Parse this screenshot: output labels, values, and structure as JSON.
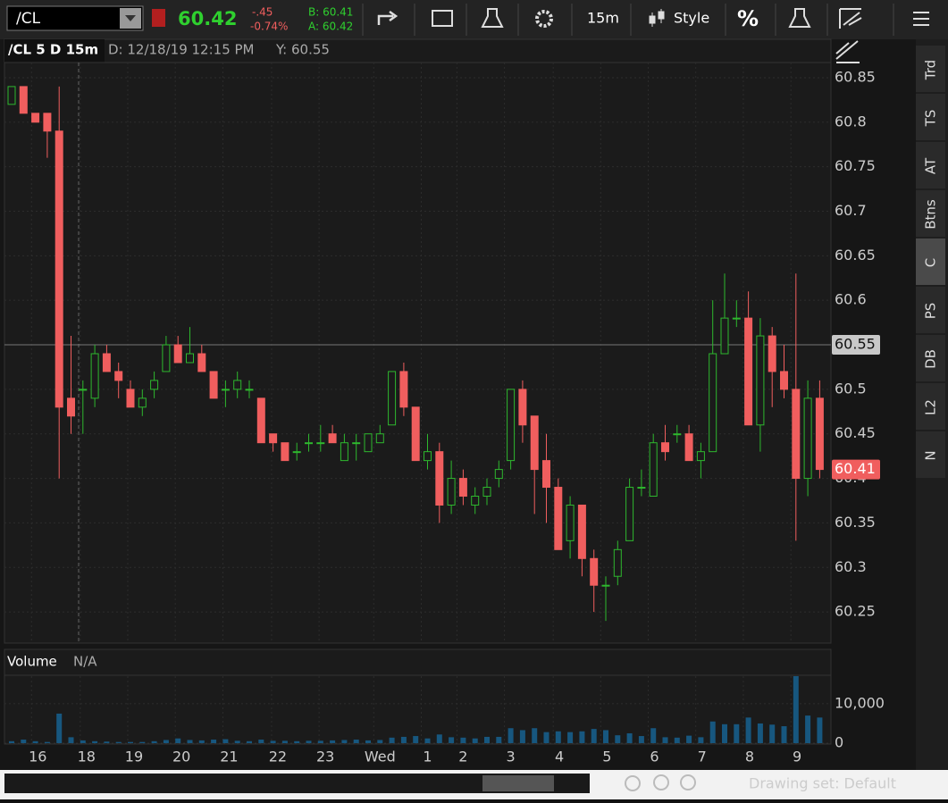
{
  "toolbar": {
    "symbol": "/CL",
    "last": "60.42",
    "change": "-.45",
    "change_pct": "-0.74%",
    "bid": "B: 60.41",
    "ask": "A: 60.42",
    "interval": "15m",
    "style": "Style",
    "percent": "%"
  },
  "chart_data": {
    "type": "candlestick",
    "title": "/CL 5 D 15m",
    "date_label": "D: 12/18/19 12:15 PM",
    "y_label": "Y: 60.55",
    "up_color": "#2eb82e",
    "down_color": "#f05e5e",
    "open": [
      60.82,
      60.84,
      60.81,
      60.81,
      60.79,
      60.49,
      60.5,
      60.49,
      60.54,
      60.52,
      60.5,
      60.48,
      60.5,
      60.52,
      60.55,
      60.53,
      60.54,
      60.52,
      60.5,
      60.5,
      60.5,
      60.49,
      60.45,
      60.44,
      60.43,
      60.44,
      60.44,
      60.45,
      60.42,
      60.44,
      60.43,
      60.44,
      60.46,
      60.52,
      60.48,
      60.42,
      60.43,
      60.37,
      60.4,
      60.37,
      60.38,
      60.4,
      60.42,
      60.5,
      60.47,
      60.42,
      60.39,
      60.33,
      60.37,
      60.31,
      60.28,
      60.29,
      60.33,
      60.39,
      60.38,
      60.44,
      60.45,
      60.45,
      60.42,
      60.43,
      60.54,
      60.58,
      60.58,
      60.46,
      60.56,
      60.52,
      60.5,
      60.4,
      60.49
    ],
    "high": [
      60.84,
      60.84,
      60.81,
      60.81,
      60.84,
      60.56,
      60.51,
      60.55,
      60.55,
      60.53,
      60.51,
      60.5,
      60.52,
      60.56,
      60.56,
      60.57,
      60.55,
      60.52,
      60.51,
      60.52,
      60.51,
      60.49,
      60.45,
      60.44,
      60.44,
      60.45,
      60.46,
      60.46,
      60.45,
      60.45,
      60.45,
      60.46,
      60.52,
      60.53,
      60.48,
      60.45,
      60.44,
      60.42,
      60.41,
      60.39,
      60.4,
      60.42,
      60.5,
      60.51,
      60.47,
      60.45,
      60.4,
      60.38,
      60.37,
      60.32,
      60.29,
      60.33,
      60.4,
      60.41,
      60.45,
      60.46,
      60.46,
      60.46,
      60.44,
      60.6,
      60.63,
      60.6,
      60.61,
      60.58,
      60.57,
      60.55,
      60.63,
      60.51,
      60.51
    ],
    "low": [
      60.82,
      60.81,
      60.8,
      60.76,
      60.4,
      60.45,
      60.45,
      60.48,
      60.52,
      60.49,
      60.48,
      60.47,
      60.49,
      60.52,
      60.53,
      60.53,
      60.52,
      60.49,
      60.48,
      60.49,
      60.49,
      60.44,
      60.43,
      60.42,
      60.42,
      60.43,
      60.43,
      60.44,
      60.42,
      60.42,
      60.43,
      60.44,
      60.46,
      60.47,
      60.42,
      60.41,
      60.35,
      60.36,
      60.37,
      60.36,
      60.37,
      60.39,
      60.41,
      60.44,
      60.36,
      60.35,
      60.32,
      60.31,
      60.29,
      60.25,
      60.24,
      60.28,
      60.33,
      60.38,
      60.38,
      60.42,
      60.44,
      60.42,
      60.4,
      60.43,
      60.54,
      60.57,
      60.46,
      60.43,
      60.48,
      60.49,
      60.33,
      60.38,
      60.4
    ],
    "close": [
      60.84,
      60.81,
      60.8,
      60.79,
      60.48,
      60.47,
      60.5,
      60.54,
      60.52,
      60.51,
      60.48,
      60.49,
      60.51,
      60.55,
      60.53,
      60.54,
      60.52,
      60.49,
      60.5,
      60.51,
      60.5,
      60.44,
      60.44,
      60.42,
      60.43,
      60.44,
      60.44,
      60.44,
      60.44,
      60.44,
      60.45,
      60.45,
      60.52,
      60.48,
      60.42,
      60.43,
      60.37,
      60.4,
      60.38,
      60.38,
      60.39,
      60.41,
      60.5,
      60.46,
      60.41,
      60.39,
      60.32,
      60.37,
      60.31,
      60.28,
      60.28,
      60.32,
      60.39,
      60.39,
      60.44,
      60.43,
      60.45,
      60.42,
      60.43,
      60.54,
      60.58,
      60.58,
      60.46,
      60.56,
      60.52,
      60.5,
      60.4,
      60.49,
      60.41
    ],
    "ylim": [
      60.215,
      60.867
    ],
    "yticks": [
      60.25,
      60.3,
      60.35,
      60.4,
      60.45,
      60.5,
      60.55,
      60.6,
      60.65,
      60.7,
      60.75,
      60.8,
      60.85
    ],
    "crosshair_y": 60.55,
    "last_price": 60.41,
    "xticks": [
      {
        "value": 2.2,
        "label": "16"
      },
      {
        "value": 6.3,
        "label": "18"
      },
      {
        "value": 10.3,
        "label": "19"
      },
      {
        "value": 14.3,
        "label": "20"
      },
      {
        "value": 18.3,
        "label": "21"
      },
      {
        "value": 22.4,
        "label": "22"
      },
      {
        "value": 26.4,
        "label": "23"
      },
      {
        "value": 31,
        "label": "Wed"
      },
      {
        "value": 35,
        "label": "1"
      },
      {
        "value": 38,
        "label": "2"
      },
      {
        "value": 42,
        "label": "3"
      },
      {
        "value": 46.1,
        "label": "4"
      },
      {
        "value": 50.1,
        "label": "5"
      },
      {
        "value": 54.1,
        "label": "6"
      },
      {
        "value": 58.1,
        "label": "7"
      },
      {
        "value": 62.1,
        "label": "8"
      },
      {
        "value": 66.1,
        "label": "9"
      }
    ],
    "volume": {
      "title": "Volume",
      "subtitle": "N/A",
      "color": "#17577f",
      "values": [
        500,
        900,
        500,
        300,
        7500,
        1500,
        700,
        500,
        400,
        300,
        300,
        300,
        500,
        800,
        1200,
        800,
        700,
        900,
        1000,
        600,
        500,
        900,
        600,
        600,
        500,
        600,
        600,
        700,
        800,
        900,
        700,
        800,
        1400,
        1600,
        1800,
        1200,
        2200,
        1500,
        1400,
        1200,
        1600,
        1600,
        3800,
        3300,
        3800,
        2800,
        3000,
        2800,
        3000,
        3600,
        3300,
        2000,
        2500,
        1800,
        3800,
        1500,
        1400,
        1900,
        1500,
        5500,
        4800,
        4800,
        6500,
        5000,
        4700,
        4300,
        17000,
        7000,
        6500
      ],
      "ylim": [
        0,
        17000
      ],
      "yticks": [
        0,
        {
          "value": 10000,
          "label": "10,000"
        }
      ]
    }
  },
  "sidebar": {
    "tabs": [
      "Trd",
      "TS",
      "AT",
      "Btns",
      "C",
      "PS",
      "DB",
      "L2",
      "N"
    ],
    "active": "C"
  },
  "footer": {
    "drawing_set": "Drawing set: Default"
  }
}
